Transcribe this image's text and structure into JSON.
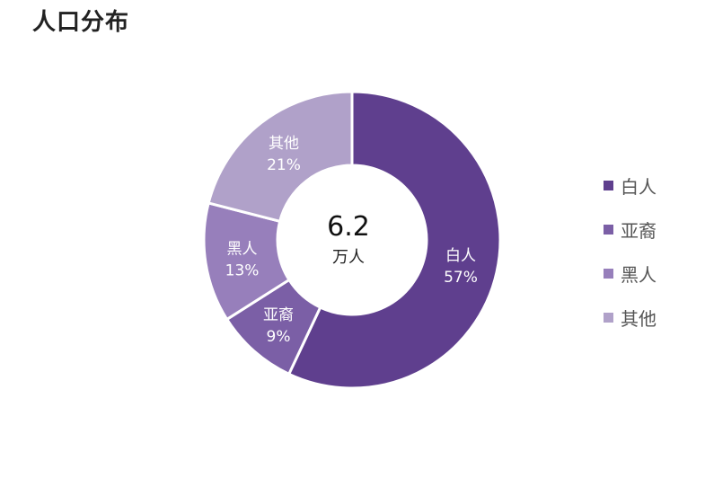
{
  "title": "人口分布",
  "chart_data": {
    "type": "pie",
    "donut": true,
    "title": "人口分布",
    "center_value": "6.2",
    "center_unit": "万人",
    "slices": [
      {
        "name": "白人",
        "value": 57,
        "label": "57%",
        "color": "#5f3f8e"
      },
      {
        "name": "亚裔",
        "value": 9,
        "label": "9%",
        "color": "#7b5fa6"
      },
      {
        "name": "黑人",
        "value": 13,
        "label": "13%",
        "color": "#977fbb"
      },
      {
        "name": "其他",
        "value": 21,
        "label": "21%",
        "color": "#b0a1c9"
      }
    ],
    "legend_position": "right"
  },
  "legend": {
    "items": [
      {
        "label": "白人",
        "color": "#5f3f8e"
      },
      {
        "label": "亚裔",
        "color": "#7b5fa6"
      },
      {
        "label": "黑人",
        "color": "#977fbb"
      },
      {
        "label": "其他",
        "color": "#b0a1c9"
      }
    ]
  }
}
